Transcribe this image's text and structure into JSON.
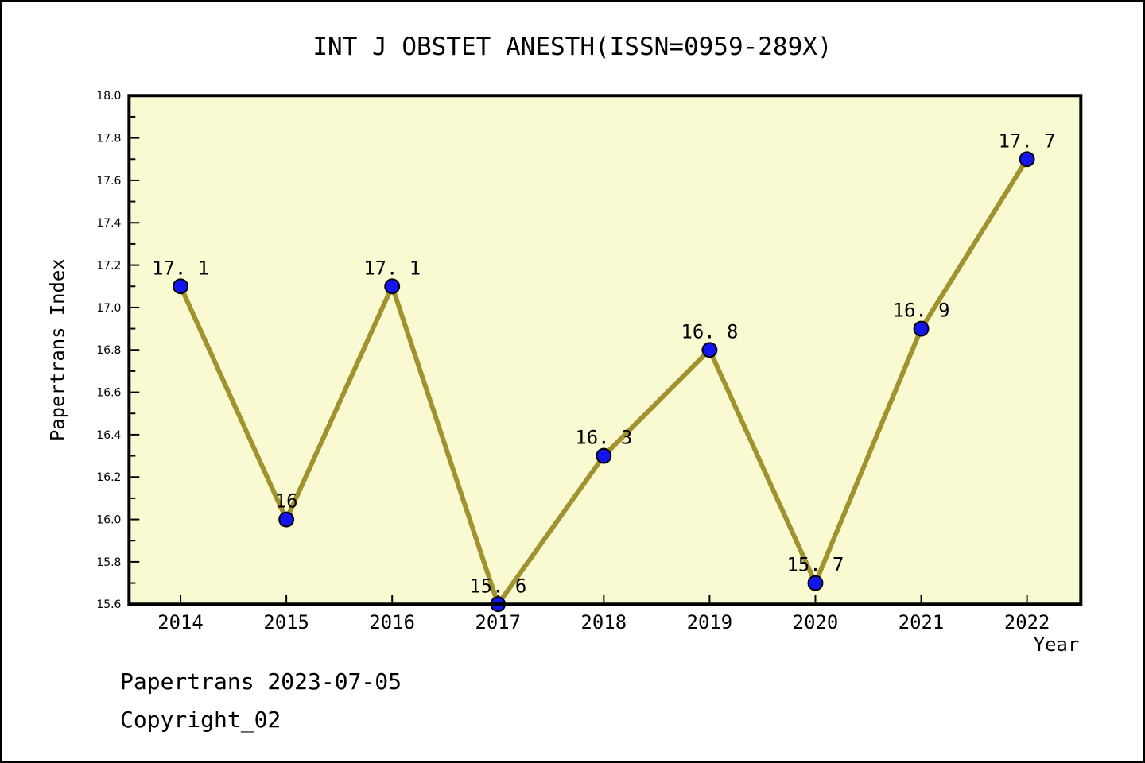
{
  "chart_data": {
    "type": "line",
    "title": "INT J OBSTET ANESTH(ISSN=0959-289X)",
    "xlabel": "Year",
    "ylabel": "Papertrans Index",
    "categories": [
      "2014",
      "2015",
      "2016",
      "2017",
      "2018",
      "2019",
      "2020",
      "2021",
      "2022"
    ],
    "series": [
      {
        "name": "Papertrans Index",
        "values": [
          17.1,
          16.0,
          17.1,
          15.6,
          16.3,
          16.8,
          15.7,
          16.9,
          17.7
        ],
        "point_labels": [
          "17. 1",
          "16",
          "17. 1",
          "15. 6",
          "16. 3",
          "16. 8",
          "15. 7",
          "16. 9",
          "17. 7"
        ]
      }
    ],
    "ylim": [
      15.6,
      18.0
    ],
    "ytick_labels": [
      "15.6",
      "15.8",
      "16.0",
      "16.2",
      "16.4",
      "16.6",
      "16.8",
      "17.0",
      "17.2",
      "17.4",
      "17.6",
      "17.8",
      "18.0"
    ],
    "ytick_minor_step": 0.1,
    "grid": false,
    "legend_position": "none"
  },
  "colors": {
    "line": "#A2912F",
    "marker_fill": "#1414EE",
    "marker_edge": "#000000",
    "plot_background": "#FAFAD2",
    "axis_and_text": "#000000",
    "page_background": "#FFFFFF"
  },
  "footer": {
    "line1": "Papertrans 2023-07-05",
    "line2": "Copyright_02"
  }
}
